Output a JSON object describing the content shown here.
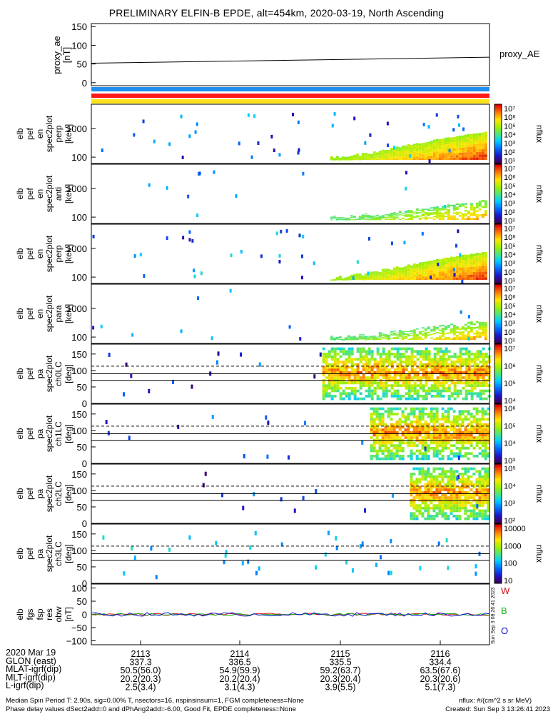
{
  "title": "PRELIMINARY ELFIN-B EPDE, alt=454km, 2020-03-19, North Ascending",
  "colors": {
    "bar_blue": "#1f8ff0",
    "bar_red": "#ff1a1a",
    "bar_yellow": "#ffe31a",
    "w_color": "#d01010",
    "b_color": "#10b010",
    "o_color": "#1010d0"
  },
  "chart_data": [
    {
      "type": "line",
      "panel": "proxy_ae",
      "ylabel": [
        "proxy_ae",
        "[nT]"
      ],
      "yticks": [
        "150",
        "100",
        "50",
        "0"
      ],
      "ylim": [
        -8,
        158
      ],
      "legend": "proxy_AE",
      "series": [
        {
          "name": "proxy_AE",
          "x_frac": [
            0,
            1
          ],
          "y": [
            52,
            68
          ]
        }
      ]
    },
    {
      "type": "heatmap",
      "panel": "pef_en_perp",
      "ylabel": [
        "elb",
        "pef",
        "en",
        "spec2plot",
        "perp",
        "[keV]"
      ],
      "yticks": [
        "1000",
        "100"
      ],
      "scale": "log",
      "ylim": [
        60,
        7000
      ],
      "colorbar": {
        "label": "nflux",
        "ticks": [
          "10⁷",
          "10⁶",
          "10⁵",
          "10⁴",
          "10³",
          "10²",
          "10¹"
        ]
      }
    },
    {
      "type": "heatmap",
      "panel": "pef_en_anti",
      "ylabel": [
        "elb",
        "pef",
        "en",
        "spec2plot",
        "anti",
        "[keV]"
      ],
      "yticks": [
        "1000",
        "100"
      ],
      "scale": "log",
      "ylim": [
        60,
        7000
      ],
      "colorbar": {
        "label": "nflux",
        "ticks": [
          "10⁷",
          "10⁶",
          "10⁵",
          "10⁴",
          "10³",
          "10²",
          "10¹"
        ]
      }
    },
    {
      "type": "heatmap",
      "panel": "pef_en_perp2",
      "ylabel": [
        "elb",
        "pef",
        "en",
        "spec2plot",
        "perp",
        "[keV]"
      ],
      "yticks": [
        "1000",
        "100"
      ],
      "scale": "log",
      "ylim": [
        60,
        7000
      ],
      "colorbar": {
        "label": "nflux",
        "ticks": [
          "10⁷",
          "10⁶",
          "10⁵",
          "10⁴",
          "10³",
          "10²",
          "10¹"
        ]
      }
    },
    {
      "type": "heatmap",
      "panel": "pef_en_para",
      "ylabel": [
        "elb",
        "pef",
        "en",
        "spec2plot",
        "para",
        "[keV]"
      ],
      "yticks": [
        "1000",
        "100"
      ],
      "scale": "log",
      "ylim": [
        60,
        7000
      ],
      "colorbar": {
        "label": "nflux",
        "ticks": [
          "10⁷",
          "10⁶",
          "10⁵",
          "10⁴",
          "10³",
          "10²",
          "10¹"
        ]
      }
    },
    {
      "type": "heatmap",
      "panel": "pef_pa_ch0LC",
      "ylabel": [
        "elb",
        "pef",
        "pa",
        "spec2plot",
        "ch0LC",
        "[deg]"
      ],
      "yticks": [
        "150",
        "100",
        "50",
        "0"
      ],
      "ylim": [
        0,
        180
      ],
      "colorbar": {
        "label": "nflux",
        "ticks": [
          "10⁷",
          "10⁶",
          "10⁵",
          "10⁴"
        ]
      }
    },
    {
      "type": "heatmap",
      "panel": "pef_pa_ch1LC",
      "ylabel": [
        "elb",
        "pef",
        "pa",
        "spec2plot",
        "ch1LC",
        "[deg]"
      ],
      "yticks": [
        "150",
        "100",
        "50",
        "0"
      ],
      "ylim": [
        0,
        180
      ],
      "colorbar": {
        "label": "nflux",
        "ticks": [
          "10⁶",
          "10⁵",
          "10⁴",
          "10³"
        ]
      }
    },
    {
      "type": "heatmap",
      "panel": "pef_pa_ch2LC",
      "ylabel": [
        "elb",
        "pef",
        "pa",
        "spec2plot",
        "ch2LC",
        "[deg]"
      ],
      "yticks": [
        "150",
        "100",
        "50",
        "0"
      ],
      "ylim": [
        0,
        180
      ],
      "colorbar": {
        "label": "nflux",
        "ticks": [
          "10⁵",
          "10⁴",
          "10³",
          "10²"
        ]
      }
    },
    {
      "type": "heatmap",
      "panel": "pef_pa_ch3LC",
      "ylabel": [
        "elb",
        "pef",
        "pa",
        "spec2plot",
        "ch3LC",
        "[deg]"
      ],
      "yticks": [
        "150",
        "100",
        "50",
        "0"
      ],
      "ylim": [
        0,
        180
      ],
      "colorbar": {
        "label": "nflux",
        "ticks": [
          "10000",
          "1000",
          "100",
          "10"
        ]
      }
    },
    {
      "type": "line",
      "panel": "fgs_res",
      "ylabel": [
        "elb",
        "fgs",
        "fsp",
        "res",
        "obw",
        "[nT]"
      ],
      "yticks": [
        "100",
        "50",
        "0",
        "−50",
        "−100"
      ],
      "ylim": [
        -115,
        115
      ],
      "legend": [
        "W",
        "B",
        "O"
      ],
      "series": [
        {
          "name": "W",
          "color": "#d01010"
        },
        {
          "name": "B",
          "color": "#10b010"
        },
        {
          "name": "O",
          "color": "#1010d0"
        }
      ],
      "stamp": "Sun Sep 3 08:26:41 2023"
    }
  ],
  "x_axis": {
    "rows": [
      {
        "label": "2020 Mar 19",
        "values": [
          "2113",
          "2114",
          "2115",
          "2116"
        ]
      },
      {
        "label": "GLON (east)",
        "values": [
          "337.3",
          "336.5",
          "335.5",
          "334.4"
        ]
      },
      {
        "label": "MLAT-igrf(dip)",
        "values": [
          "50.5(56.0)",
          "54.9(59.9)",
          "59.2(63.7)",
          "63.5(67.6)"
        ]
      },
      {
        "label": "MLT-igrf(dip)",
        "values": [
          "20.2(20.3)",
          "20.2(20.4)",
          "20.3(20.4)",
          "20.3(20.6)"
        ]
      },
      {
        "label": "L-igrf(dip)",
        "values": [
          "2.5(3.4)",
          "3.1(4.3)",
          "3.9(5.5)",
          "5.1(7.3)"
        ]
      }
    ]
  },
  "footer": {
    "line1": "Median Spin Period T: 2.90s, sig=0.00% T, nsectors=16, nspinsinsum=1, FGM completeness=None",
    "line2": "Phase delay values dSect2add=0 and dPhAng2add=-6.00, Good Fit, EPDE completeness=None",
    "units": "nflux: #/(cm^2 s sr MeV)",
    "created": "Created: Sun Sep  3 13:26:41 2023"
  }
}
